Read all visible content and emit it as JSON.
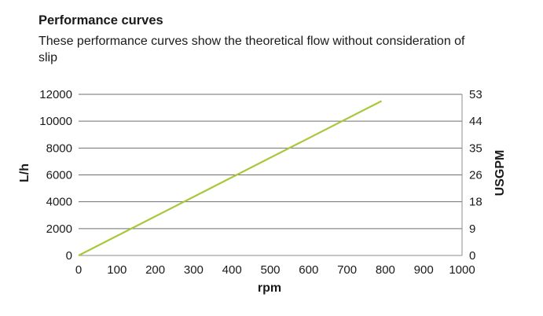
{
  "header": {
    "title": "Performance curves",
    "subtitle": "These performance curves show the theoretical flow without consideration of slip"
  },
  "chart_data": {
    "type": "line",
    "title": "Performance curves",
    "xlabel": "rpm",
    "ylabel": "L/h",
    "y2label": "USGPM",
    "xlim": [
      0,
      1000
    ],
    "ylim": [
      0,
      12000
    ],
    "xticks": [
      "0",
      "100",
      "200",
      "300",
      "400",
      "500",
      "600",
      "700",
      "800",
      "900",
      "1000"
    ],
    "yticks": [
      "0",
      "2000",
      "4000",
      "6000",
      "8000",
      "10000",
      "12000"
    ],
    "y2ticks": [
      "0",
      "9",
      "18",
      "26",
      "35",
      "44",
      "53"
    ],
    "grid": "horizontal",
    "legend": "none",
    "series": [
      {
        "x": [
          0,
          790
        ],
        "y": [
          0,
          11500
        ],
        "color": "#a8c83c"
      }
    ]
  }
}
